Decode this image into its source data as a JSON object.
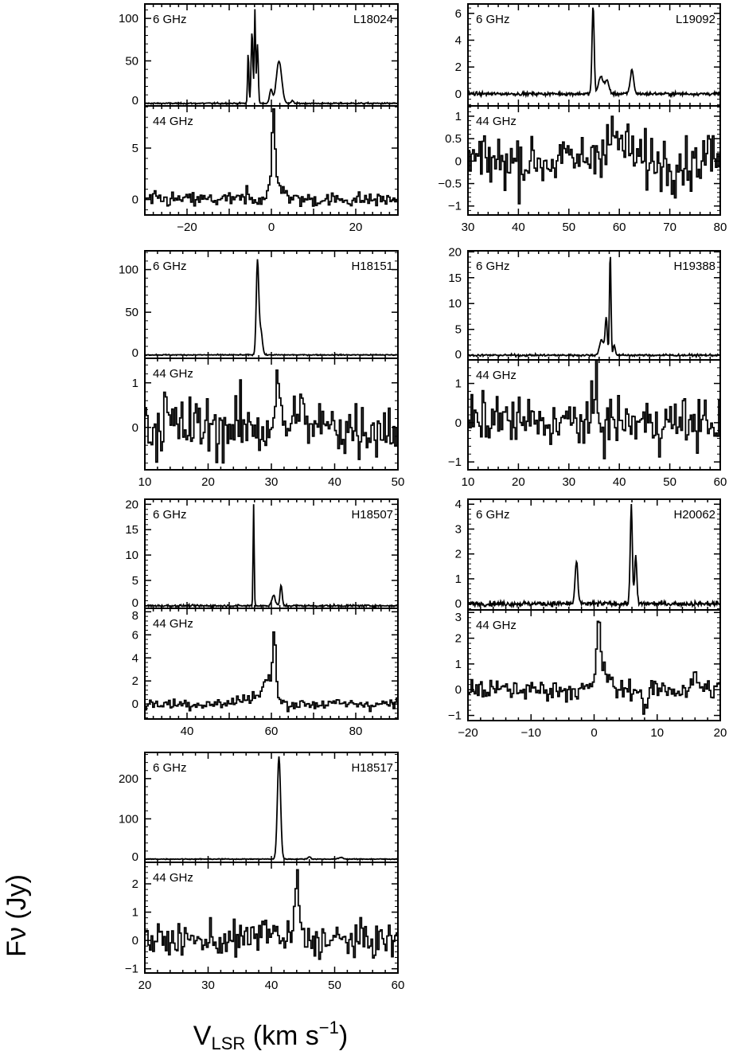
{
  "chart_data": {
    "type": "line",
    "xlabel": "V_LSR (km s^-1)",
    "ylabel": "Fν (Jy)",
    "note_series_encoding": "Spectra shown as gaussian line components [center km/s, peak Jy, FWHM km/s] over a noisy baseline of given rms (values read from the plot)",
    "panels": [
      {
        "source": "L18024",
        "xlim": [
          -30,
          30
        ],
        "xticks": [
          -20,
          0,
          20
        ],
        "upper": {
          "label": "6 GHz",
          "ylim": [
            -3,
            117
          ],
          "yticks": [
            0,
            50,
            100
          ],
          "rms": 0.4,
          "components": [
            [
              -5.5,
              60,
              0.35
            ],
            [
              -4.6,
              85,
              0.5
            ],
            [
              -3.9,
              110,
              0.35
            ],
            [
              -3.3,
              70,
              0.45
            ],
            [
              -0.1,
              16,
              0.8
            ],
            [
              1.8,
              50,
              1.5
            ],
            [
              5.0,
              3,
              0.6
            ]
          ]
        },
        "lower": {
          "label": "44 GHz",
          "ylim": [
            -1.5,
            9.1
          ],
          "yticks": [
            0,
            5
          ],
          "rms": 0.35,
          "components": [
            [
              0.3,
              6.5,
              0.8
            ],
            [
              0.5,
              2,
              3
            ],
            [
              3.0,
              1,
              1
            ],
            [
              -6,
              1,
              0.3
            ]
          ]
        }
      },
      {
        "source": "L19092",
        "xlim": [
          30,
          80
        ],
        "xticks": [
          30,
          40,
          50,
          60,
          70,
          80
        ],
        "upper": {
          "label": "6 GHz",
          "ylim": [
            -0.9,
            6.7
          ],
          "yticks": [
            0,
            2,
            4,
            6
          ],
          "rms": 0.06,
          "components": [
            [
              54.8,
              6.5,
              0.5
            ],
            [
              56.3,
              1.3,
              1
            ],
            [
              57.5,
              1,
              1
            ],
            [
              62.5,
              1.8,
              0.8
            ]
          ]
        },
        "lower": {
          "label": "44 GHz",
          "ylim": [
            -1.2,
            1.23
          ],
          "yticks": [
            -1,
            -0.5,
            0,
            0.5,
            1
          ],
          "rms": 0.3,
          "components": [
            [
              58.5,
              0.5,
              6
            ],
            [
              77.5,
              0.6,
              0.5
            ]
          ]
        }
      },
      {
        "source": "H18151",
        "xlim": [
          10,
          50
        ],
        "xticks": [
          10,
          20,
          30,
          40,
          50
        ],
        "upper": {
          "label": "6 GHz",
          "ylim": [
            -4,
            122
          ],
          "yticks": [
            0,
            50,
            100
          ],
          "rms": 0.3,
          "components": [
            [
              27.8,
              108,
              0.45
            ],
            [
              28.3,
              30,
              0.6
            ]
          ]
        },
        "lower": {
          "label": "44 GHz",
          "ylim": [
            -0.95,
            1.55
          ],
          "yticks": [
            0,
            1
          ],
          "rms": 0.35,
          "components": [
            [
              30.8,
              0.9,
              1
            ],
            [
              34.2,
              0.8,
              0.8
            ],
            [
              13,
              0.4,
              0.8
            ]
          ]
        }
      },
      {
        "source": "H19388",
        "xlim": [
          10,
          60
        ],
        "xticks": [
          10,
          20,
          30,
          40,
          50,
          60
        ],
        "upper": {
          "label": "6 GHz",
          "ylim": [
            -0.9,
            20.2
          ],
          "yticks": [
            0,
            5,
            10,
            15,
            20
          ],
          "rms": 0.1,
          "components": [
            [
              36.5,
              3,
              1
            ],
            [
              37.4,
              7,
              0.5
            ],
            [
              38.2,
              20,
              0.35
            ],
            [
              39.0,
              2,
              0.5
            ]
          ]
        },
        "lower": {
          "label": "44 GHz",
          "ylim": [
            -1.2,
            1.6
          ],
          "yticks": [
            -1,
            0,
            1
          ],
          "rms": 0.33,
          "components": [
            [
              35.3,
              1.2,
              0.6
            ],
            [
              16,
              0.5,
              0.8
            ]
          ]
        }
      },
      {
        "source": "H18507",
        "xlim": [
          30,
          90
        ],
        "xticks": [
          40,
          60,
          80
        ],
        "upper": {
          "label": "6 GHz",
          "ylim": [
            -0.5,
            21
          ],
          "yticks": [
            0,
            5,
            10,
            15,
            20
          ],
          "rms": 0.1,
          "components": [
            [
              55.8,
              20,
              0.3
            ],
            [
              60.5,
              2,
              1
            ],
            [
              62.3,
              4,
              0.6
            ]
          ]
        },
        "lower": {
          "label": "44 GHz",
          "ylim": [
            -1.3,
            8.3
          ],
          "yticks": [
            0,
            2,
            4,
            6,
            8
          ],
          "rms": 0.25,
          "components": [
            [
              60.5,
              5.5,
              0.8
            ],
            [
              59.2,
              2,
              3
            ],
            [
              55,
              0.6,
              6
            ]
          ]
        }
      },
      {
        "source": "H20062",
        "xlim": [
          -20,
          20
        ],
        "xticks": [
          -20,
          -10,
          0,
          10,
          20
        ],
        "upper": {
          "label": "6 GHz",
          "ylim": [
            -0.25,
            4.2
          ],
          "yticks": [
            0,
            1,
            2,
            3,
            4
          ],
          "rms": 0.05,
          "components": [
            [
              -2.8,
              1.7,
              0.5
            ],
            [
              5.9,
              4,
              0.4
            ],
            [
              6.6,
              1.9,
              0.4
            ]
          ]
        },
        "lower": {
          "label": "44 GHz",
          "ylim": [
            -1.2,
            3.1
          ],
          "yticks": [
            -1,
            0,
            1,
            2,
            3
          ],
          "rms": 0.2,
          "components": [
            [
              0.6,
              2.4,
              0.6
            ],
            [
              1.2,
              0.8,
              2
            ],
            [
              8,
              -0.8,
              0.8
            ],
            [
              16,
              0.4,
              1.5
            ]
          ]
        }
      },
      {
        "source": "H18517",
        "xlim": [
          20,
          60
        ],
        "xticks": [
          20,
          30,
          40,
          50,
          60
        ],
        "upper": {
          "label": "6 GHz",
          "ylim": [
            -8,
            265
          ],
          "yticks": [
            0,
            100,
            200
          ],
          "rms": 0.5,
          "components": [
            [
              41.2,
              255,
              0.6
            ],
            [
              46,
              6,
              0.5
            ],
            [
              51,
              4,
              0.8
            ]
          ]
        },
        "lower": {
          "label": "44 GHz",
          "ylim": [
            -1.15,
            2.76
          ],
          "yticks": [
            -1,
            0,
            1,
            2
          ],
          "rms": 0.3,
          "components": [
            [
              43.9,
              2.2,
              0.8
            ],
            [
              39,
              0.4,
              3
            ]
          ]
        }
      }
    ]
  }
}
